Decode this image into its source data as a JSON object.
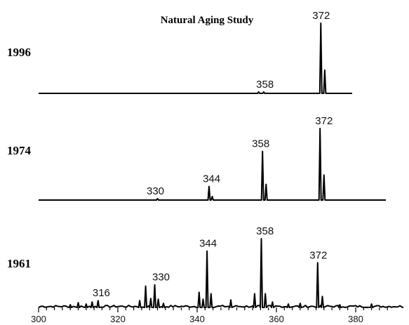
{
  "chart_data": {
    "type": "line",
    "title": "Natural Aging Study",
    "xlabel": "",
    "ylabel": "",
    "xlim": [
      300,
      388
    ],
    "x_ticks": [
      "300",
      "320",
      "340",
      "360",
      "380"
    ],
    "grid": false,
    "series": [
      {
        "name": "1996",
        "peaks": [
          {
            "x": 355.5,
            "y": 0.02
          },
          {
            "x": 356.8,
            "y": 0.02
          },
          {
            "x": 371.2,
            "y": 1.0
          },
          {
            "x": 372.2,
            "y": 0.33
          }
        ],
        "peak_labels": [
          {
            "x": 358,
            "text": "358"
          },
          {
            "x": 372,
            "text": "372"
          }
        ]
      },
      {
        "name": "1974",
        "peaks": [
          {
            "x": 330,
            "y": 0.02
          },
          {
            "x": 343,
            "y": 0.19
          },
          {
            "x": 343.8,
            "y": 0.05
          },
          {
            "x": 356.5,
            "y": 0.68
          },
          {
            "x": 357.4,
            "y": 0.22
          },
          {
            "x": 371,
            "y": 1.0
          },
          {
            "x": 372,
            "y": 0.35
          }
        ],
        "peak_labels": [
          {
            "x": 330,
            "text": "330"
          },
          {
            "x": 344,
            "text": "344"
          },
          {
            "x": 358,
            "text": "358"
          },
          {
            "x": 372,
            "text": "372"
          }
        ]
      },
      {
        "name": "1961",
        "peaks": [
          {
            "x": 308,
            "y": 0.04
          },
          {
            "x": 310,
            "y": 0.07
          },
          {
            "x": 312,
            "y": 0.05
          },
          {
            "x": 313.5,
            "y": 0.08
          },
          {
            "x": 315,
            "y": 0.1
          },
          {
            "x": 325.5,
            "y": 0.1
          },
          {
            "x": 327,
            "y": 0.31
          },
          {
            "x": 328.3,
            "y": 0.13
          },
          {
            "x": 329.3,
            "y": 0.33
          },
          {
            "x": 330.2,
            "y": 0.12
          },
          {
            "x": 331.5,
            "y": 0.06
          },
          {
            "x": 340.5,
            "y": 0.22
          },
          {
            "x": 341.5,
            "y": 0.12
          },
          {
            "x": 342.5,
            "y": 0.82
          },
          {
            "x": 343.5,
            "y": 0.2
          },
          {
            "x": 348.5,
            "y": 0.11
          },
          {
            "x": 354.5,
            "y": 0.2
          },
          {
            "x": 356.2,
            "y": 1.0
          },
          {
            "x": 357.2,
            "y": 0.2
          },
          {
            "x": 359,
            "y": 0.08
          },
          {
            "x": 363,
            "y": 0.05
          },
          {
            "x": 366,
            "y": 0.06
          },
          {
            "x": 370.4,
            "y": 0.65
          },
          {
            "x": 371.6,
            "y": 0.16
          },
          {
            "x": 376,
            "y": 0.04
          },
          {
            "x": 384,
            "y": 0.05
          }
        ],
        "peak_labels": [
          {
            "x": 316,
            "text": "316"
          },
          {
            "x": 330,
            "text": "330"
          },
          {
            "x": 344,
            "text": "344"
          },
          {
            "x": 358,
            "text": "358"
          },
          {
            "x": 372,
            "text": "372"
          }
        ]
      }
    ]
  }
}
